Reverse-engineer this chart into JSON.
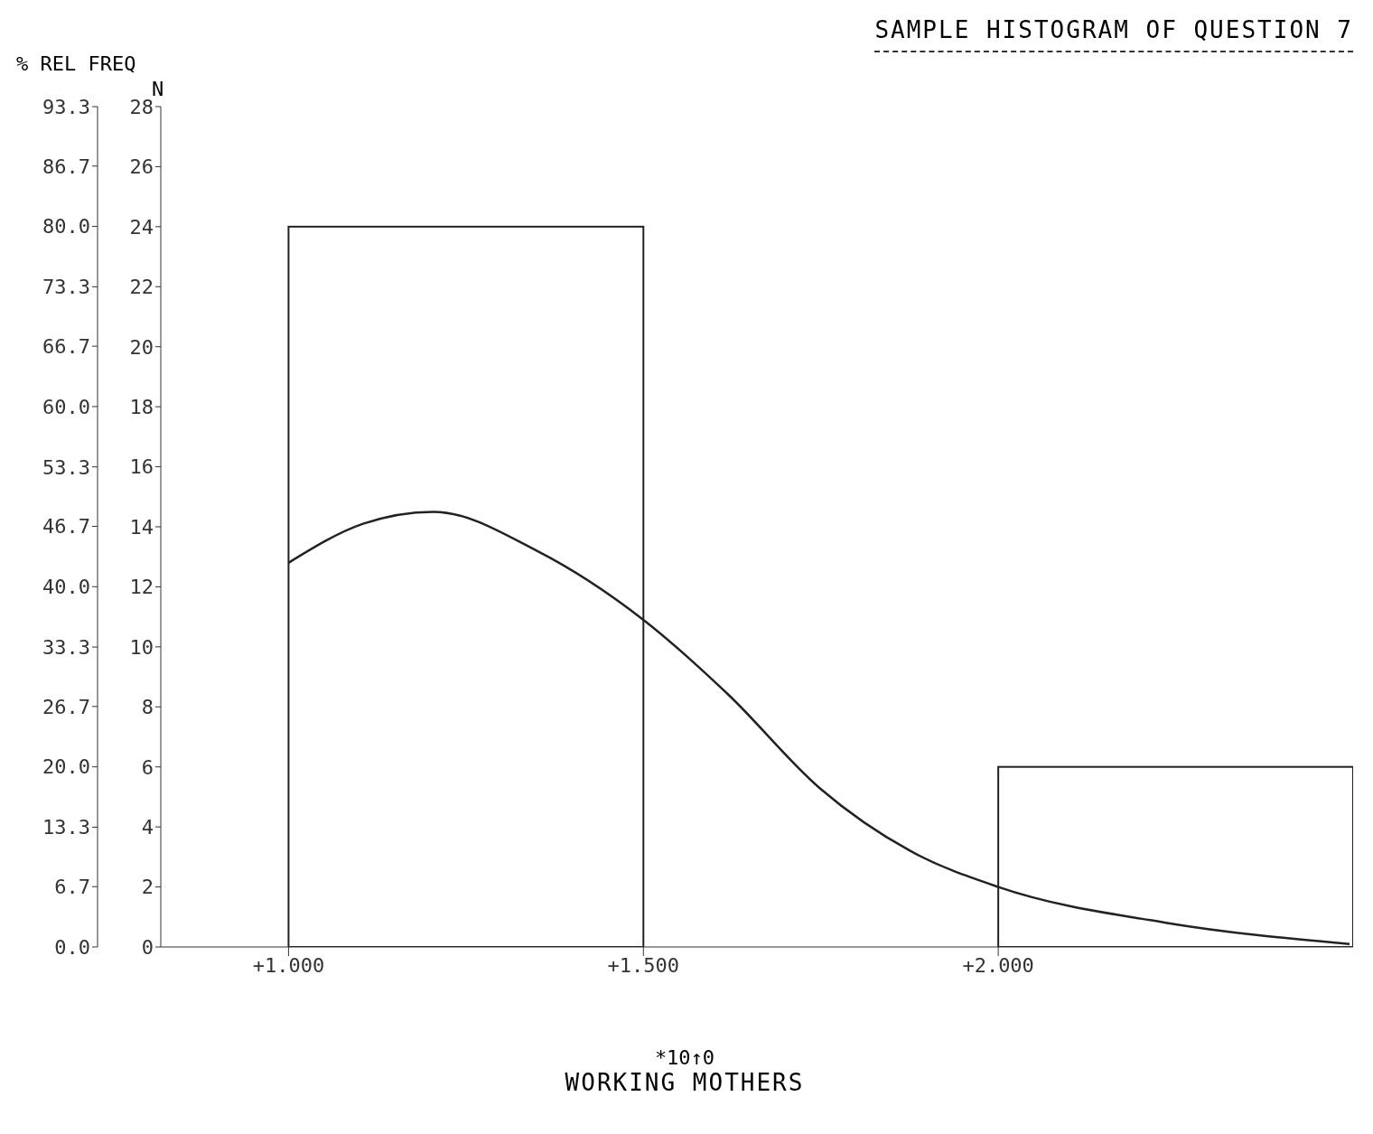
{
  "chart_data": {
    "type": "histogram",
    "title": "SAMPLE  HISTOGRAM OF QUESTION 7",
    "xlabel": "WORKING MOTHERS",
    "ylabel": "N",
    "y2label": "% REL FREQ",
    "annotations": [
      "*10↑0"
    ],
    "bins": [
      1,
      1.5,
      2,
      2.5
    ],
    "values": [
      24,
      0,
      6
    ],
    "color": "#222222",
    "series": [
      {
        "type": "line",
        "color": "#222222",
        "x": [
          1.0,
          1.105,
          1.204,
          1.35,
          1.5,
          1.62,
          1.748,
          1.876,
          2.0,
          2.238,
          2.495
        ],
        "values": [
          12.8,
          14.1,
          14.5,
          13.2,
          10.9,
          8.4,
          5.3,
          3.2,
          2.0,
          0.8,
          0.1
        ]
      }
    ],
    "xlim": [
      0.82,
      2.5
    ],
    "xticks": [
      {
        "value": 1,
        "label": "+1.000"
      },
      {
        "value": 1.5,
        "label": "+1.500"
      },
      {
        "value": 2,
        "label": "+2.000"
      }
    ],
    "ylim": [
      0,
      28
    ],
    "yticks": [
      0,
      2,
      4,
      6,
      8,
      10,
      12,
      14,
      16,
      18,
      20,
      22,
      24,
      26,
      28
    ],
    "y2lim": [
      0,
      93.3
    ],
    "y2ticks": [
      {
        "value": 0,
        "label": "0.0"
      },
      6.7,
      13.3,
      {
        "value": 20,
        "label": "20.0"
      },
      26.7,
      33.3,
      {
        "value": 40,
        "label": "40.0"
      },
      46.7,
      53.3,
      {
        "value": 60,
        "label": "60.0"
      },
      66.7,
      73.3,
      {
        "value": 80,
        "label": "80.0"
      },
      86.7,
      93.3
    ],
    "grid": false,
    "legend": false,
    "marker": "none",
    "line_style": "solid"
  }
}
